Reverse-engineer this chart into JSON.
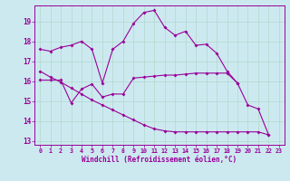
{
  "background_color": "#cde9f0",
  "grid_color": "#b0d9cc",
  "line_color": "#990099",
  "spine_color": "#990099",
  "xlabel": "Windchill (Refroidissement éolien,°C)",
  "xlim": [
    -0.5,
    23.5
  ],
  "ylim": [
    12.8,
    19.8
  ],
  "yticks": [
    13,
    14,
    15,
    16,
    17,
    18,
    19
  ],
  "xticks": [
    0,
    1,
    2,
    3,
    4,
    5,
    6,
    7,
    8,
    9,
    10,
    11,
    12,
    13,
    14,
    15,
    16,
    17,
    18,
    19,
    20,
    21,
    22,
    23
  ],
  "series1_x": [
    0,
    1,
    2,
    3,
    4,
    5,
    6,
    7,
    8,
    9,
    10,
    11,
    12,
    13,
    14,
    15,
    16,
    17,
    18,
    19,
    20,
    21,
    22
  ],
  "series1_y": [
    17.6,
    17.5,
    17.7,
    17.8,
    18.0,
    17.6,
    15.9,
    17.6,
    18.0,
    18.9,
    19.45,
    19.55,
    18.7,
    18.3,
    18.5,
    17.8,
    17.85,
    17.4,
    16.5,
    15.9,
    14.8,
    14.6,
    13.3
  ],
  "series2_x": [
    0,
    1,
    2,
    3,
    4,
    5,
    6,
    7,
    8,
    9,
    10,
    11,
    12,
    13,
    14,
    15,
    16,
    17,
    18,
    19
  ],
  "series2_y": [
    16.05,
    16.05,
    16.05,
    14.9,
    15.6,
    15.85,
    15.2,
    15.35,
    15.35,
    16.15,
    16.2,
    16.25,
    16.3,
    16.3,
    16.35,
    16.4,
    16.4,
    16.4,
    16.4,
    15.9
  ],
  "series3_x": [
    0,
    1,
    2,
    3,
    4,
    5,
    6,
    7,
    8,
    9,
    10,
    11,
    12,
    13,
    14,
    15,
    16,
    17,
    18,
    19,
    20,
    21,
    22
  ],
  "series3_y": [
    16.5,
    16.2,
    15.95,
    15.65,
    15.35,
    15.05,
    14.8,
    14.55,
    14.3,
    14.05,
    13.8,
    13.6,
    13.5,
    13.45,
    13.45,
    13.45,
    13.45,
    13.45,
    13.45,
    13.45,
    13.45,
    13.45,
    13.3
  ]
}
